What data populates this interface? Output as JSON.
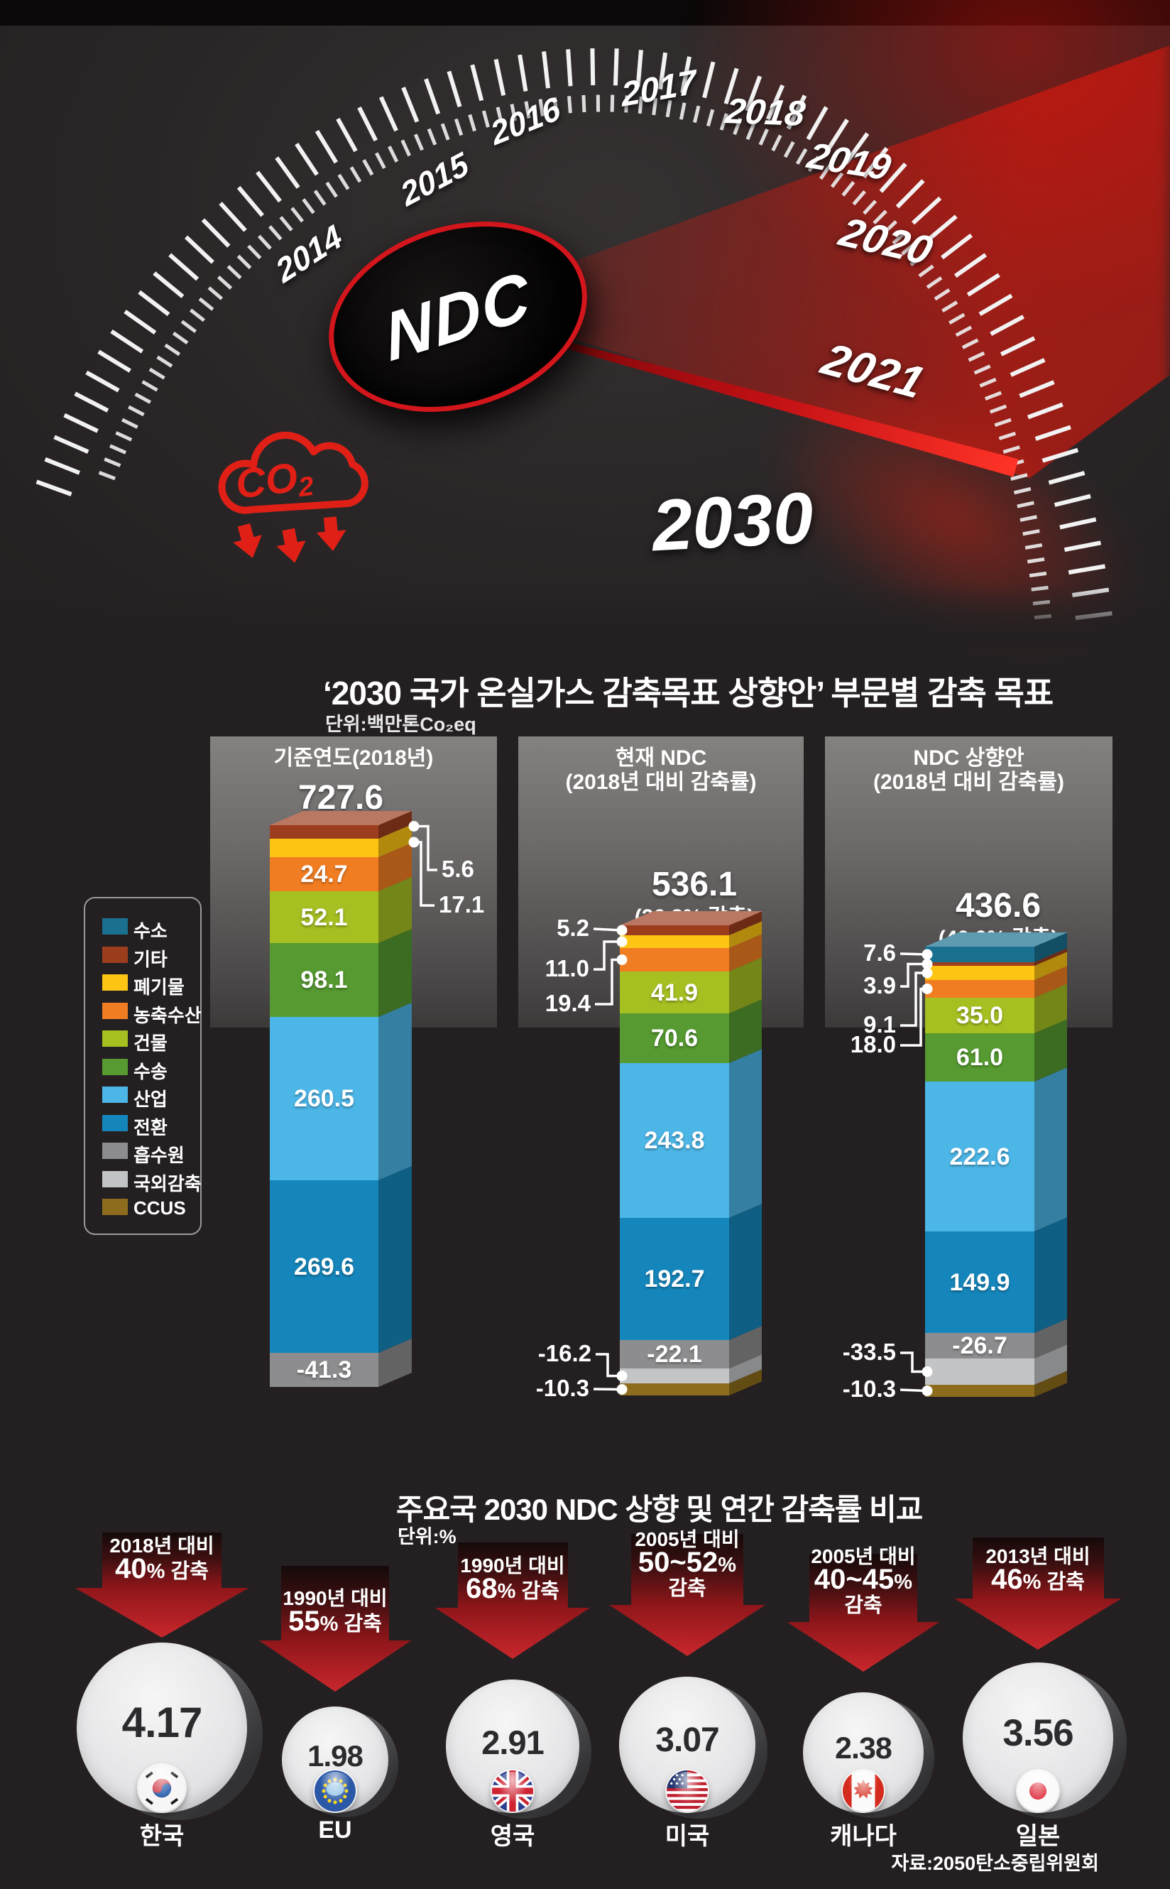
{
  "speedometer": {
    "years": [
      "2014",
      "2015",
      "2016",
      "2017",
      "2018",
      "2019",
      "2020",
      "2021"
    ],
    "target_year": "2030",
    "hub_label": "NDC",
    "co2_main": "CO",
    "co2_sub": "2",
    "accent_red": "#d3151c"
  },
  "chart_data": [
    {
      "type": "bar",
      "stacked": true,
      "title": "‘2030 국가 온실가스 감축목표 상향안’ 부문별 감축 목표",
      "unit_label": "단위:백만톤Co₂eq",
      "legend": [
        {
          "label": "수소",
          "color": "#19708f"
        },
        {
          "label": "기타",
          "color": "#9c3d1e"
        },
        {
          "label": "폐기물",
          "color": "#fdc413"
        },
        {
          "label": "농축수산",
          "color": "#f17d22"
        },
        {
          "label": "건물",
          "color": "#a6bf21"
        },
        {
          "label": "수송",
          "color": "#569a31"
        },
        {
          "label": "산업",
          "color": "#4cb6e7"
        },
        {
          "label": "전환",
          "color": "#1586bb"
        },
        {
          "label": "흡수원",
          "color": "#8d8d8f"
        },
        {
          "label": "국외감축",
          "color": "#c2c4c6"
        },
        {
          "label": "CCUS",
          "color": "#8d6d1d"
        }
      ],
      "bars": [
        {
          "label": "기준연도(2018년)",
          "total": 727.6,
          "segments": [
            {
              "name": "기타",
              "value": 5.6
            },
            {
              "name": "폐기물",
              "value": 17.1
            },
            {
              "name": "농축수산",
              "value": 24.7
            },
            {
              "name": "건물",
              "value": 52.1
            },
            {
              "name": "수송",
              "value": 98.1
            },
            {
              "name": "산업",
              "value": 260.5
            },
            {
              "name": "전환",
              "value": 269.6
            },
            {
              "name": "흡수원",
              "value": -41.3
            }
          ]
        },
        {
          "label": "현재 NDC",
          "sublabel": "(2018년 대비 감축률)",
          "total": 536.1,
          "note": "(26.3% 감축)",
          "segments": [
            {
              "name": "기타",
              "value": 5.2
            },
            {
              "name": "폐기물",
              "value": 11.0
            },
            {
              "name": "농축수산",
              "value": 19.4
            },
            {
              "name": "건물",
              "value": 41.9
            },
            {
              "name": "수송",
              "value": 70.6
            },
            {
              "name": "산업",
              "value": 243.8
            },
            {
              "name": "전환",
              "value": 192.7
            },
            {
              "name": "흡수원",
              "value": -22.1
            },
            {
              "name": "국외감축",
              "value": -16.2
            },
            {
              "name": "CCUS",
              "value": -10.3
            }
          ]
        },
        {
          "label": "NDC 상향안",
          "sublabel": "(2018년 대비 감축률)",
          "total": 436.6,
          "note": "(40.0% 감축)",
          "segments": [
            {
              "name": "수소",
              "value": 7.6
            },
            {
              "name": "기타",
              "value": 3.9
            },
            {
              "name": "폐기물",
              "value": 9.1
            },
            {
              "name": "농축수산",
              "value": 18.0
            },
            {
              "name": "건물",
              "value": 35.0
            },
            {
              "name": "수송",
              "value": 61.0
            },
            {
              "name": "산업",
              "value": 222.6
            },
            {
              "name": "전환",
              "value": 149.9
            },
            {
              "name": "흡수원",
              "value": -26.7
            },
            {
              "name": "국외감축",
              "value": -33.5
            },
            {
              "name": "CCUS",
              "value": -10.3
            }
          ]
        }
      ]
    },
    {
      "type": "bar",
      "title": "주요국 2030 NDC 상향 및 연간 감축률 비교",
      "unit_label": "단위:%",
      "items": [
        {
          "name": "한국",
          "value": 4.17,
          "base": "2018년 대비",
          "pct": "40%",
          "verb": "감축",
          "flag": "kr"
        },
        {
          "name": "EU",
          "value": 1.98,
          "base": "1990년 대비",
          "pct": "55%",
          "verb": "감축",
          "flag": "eu"
        },
        {
          "name": "영국",
          "value": 2.91,
          "base": "1990년 대비",
          "pct": "68%",
          "verb": "감축",
          "flag": "gb"
        },
        {
          "name": "미국",
          "value": 3.07,
          "base": "2005년 대비",
          "pct": "50~52%",
          "verb": "감축",
          "flag": "us"
        },
        {
          "name": "캐나다",
          "value": 2.38,
          "base": "2005년 대비",
          "pct": "40~45%",
          "verb": "감축",
          "flag": "ca"
        },
        {
          "name": "일본",
          "value": 3.56,
          "base": "2013년 대비",
          "pct": "46%",
          "verb": "감축",
          "flag": "jp"
        }
      ]
    }
  ],
  "source": "자료:2050탄소중립위원회"
}
